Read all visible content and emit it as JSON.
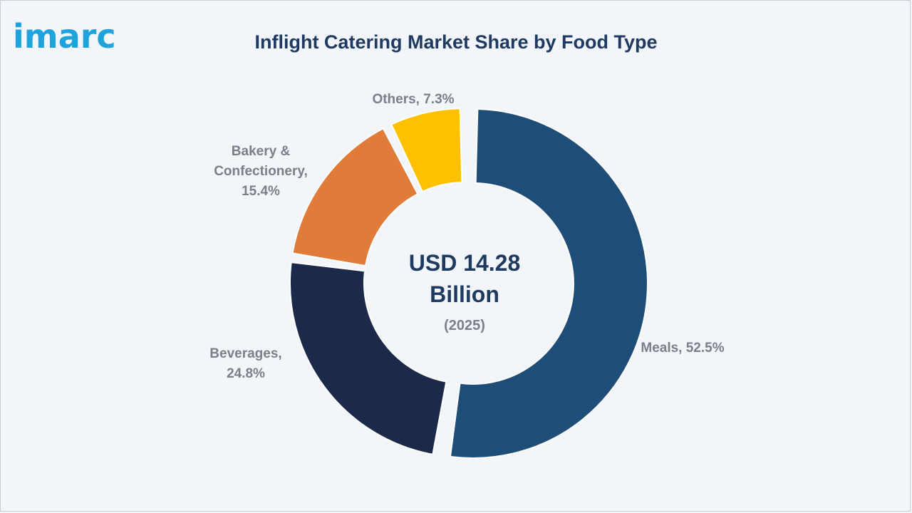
{
  "logo": {
    "text": "imarc",
    "color": "#1ea3dc"
  },
  "chart_data": {
    "type": "pie",
    "subtype": "donut",
    "title": "Inflight Catering Market Share by Food Type",
    "center": {
      "line1": "USD 14.28",
      "line2": "Billion",
      "line3": "(2025)"
    },
    "slices": [
      {
        "name": "Meals",
        "value": 52.5,
        "label_lines": [
          "Meals, 52.5%"
        ],
        "color": "#1e4d78",
        "exploded": true
      },
      {
        "name": "Beverages",
        "value": 24.8,
        "label_lines": [
          "Beverages,",
          "24.8%"
        ],
        "color": "#1b2a4a",
        "exploded": false
      },
      {
        "name": "Bakery & Confectionery",
        "value": 15.4,
        "label_lines": [
          "Bakery &",
          "Confectionery,",
          "15.4%"
        ],
        "color": "#e07b39",
        "exploded": false
      },
      {
        "name": "Others",
        "value": 7.3,
        "label_lines": [
          "Others, 7.3%"
        ],
        "color": "#ffc000",
        "exploded": false
      }
    ],
    "legend": "none"
  }
}
